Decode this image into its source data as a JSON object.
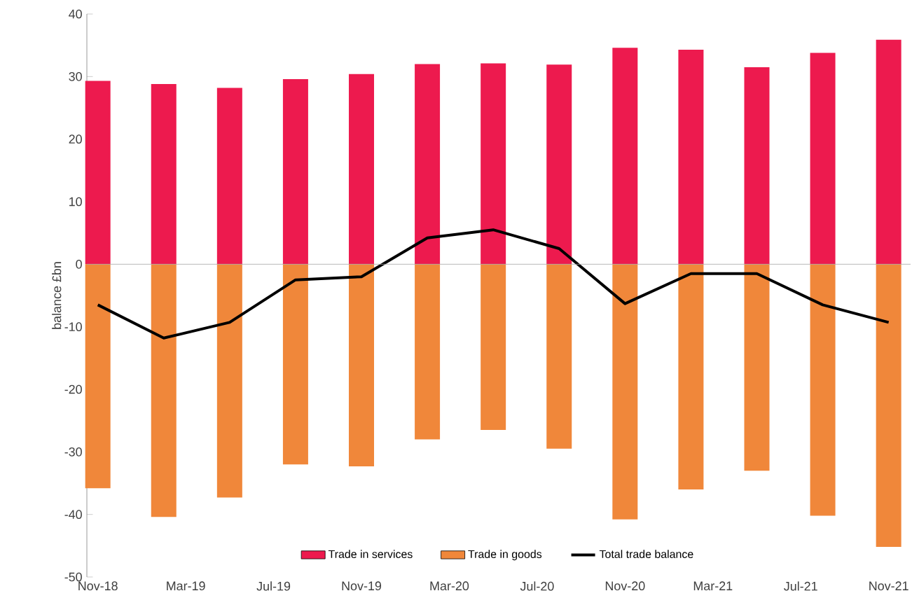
{
  "chart_data": {
    "type": "bar",
    "ylabel": "balance £bn",
    "x": [
      "2018-11",
      "2019-02",
      "2019-05",
      "2019-08",
      "2019-11",
      "2020-02",
      "2020-05",
      "2020-08",
      "2020-11",
      "2021-02",
      "2021-05",
      "2021-08",
      "2021-11"
    ],
    "series": [
      {
        "name": "Trade in services",
        "color": "#ed1a4e",
        "values": [
          29.3,
          28.8,
          28.2,
          29.6,
          30.4,
          32.0,
          32.1,
          31.9,
          34.6,
          34.3,
          31.5,
          33.8,
          35.9
        ]
      },
      {
        "name": "Trade in goods",
        "color": "#f0873a",
        "values": [
          -35.8,
          -40.4,
          -37.3,
          -32.0,
          -32.3,
          -28.0,
          -26.5,
          -29.5,
          -40.8,
          -36.0,
          -33.0,
          -40.2,
          -45.2
        ]
      },
      {
        "name": "Total trade balance",
        "type": "line",
        "color": "#000000",
        "values": [
          -6.5,
          -11.8,
          -9.3,
          -2.5,
          -2.0,
          4.2,
          5.5,
          2.5,
          -6.3,
          -1.5,
          -1.5,
          -6.5,
          -9.3
        ]
      }
    ],
    "xlim": [
      "2018-10-16",
      "2021-12-01"
    ],
    "xticks": [
      {
        "value": "2018-11",
        "label": "Nov-18"
      },
      {
        "value": "2019-03",
        "label": "Mar-19"
      },
      {
        "value": "2019-07",
        "label": "Jul-19"
      },
      {
        "value": "2019-11",
        "label": "Nov-19"
      },
      {
        "value": "2020-03",
        "label": "Mar-20"
      },
      {
        "value": "2020-07",
        "label": "Jul-20"
      },
      {
        "value": "2020-11",
        "label": "Nov-20"
      },
      {
        "value": "2021-03",
        "label": "Mar-21"
      },
      {
        "value": "2021-07",
        "label": "Jul-21"
      },
      {
        "value": "2021-11",
        "label": "Nov-21"
      }
    ],
    "ylim": [
      -50,
      40
    ],
    "yticks": [
      -50,
      -40,
      -30,
      -20,
      -10,
      0,
      10,
      20,
      30,
      40
    ],
    "stacked": true,
    "ref_lines": [
      {
        "axis": "y",
        "value": 0,
        "color": "#a6a6a6"
      }
    ],
    "legend": "bottom",
    "grid": false,
    "marker": "none",
    "line_style": "solid"
  }
}
